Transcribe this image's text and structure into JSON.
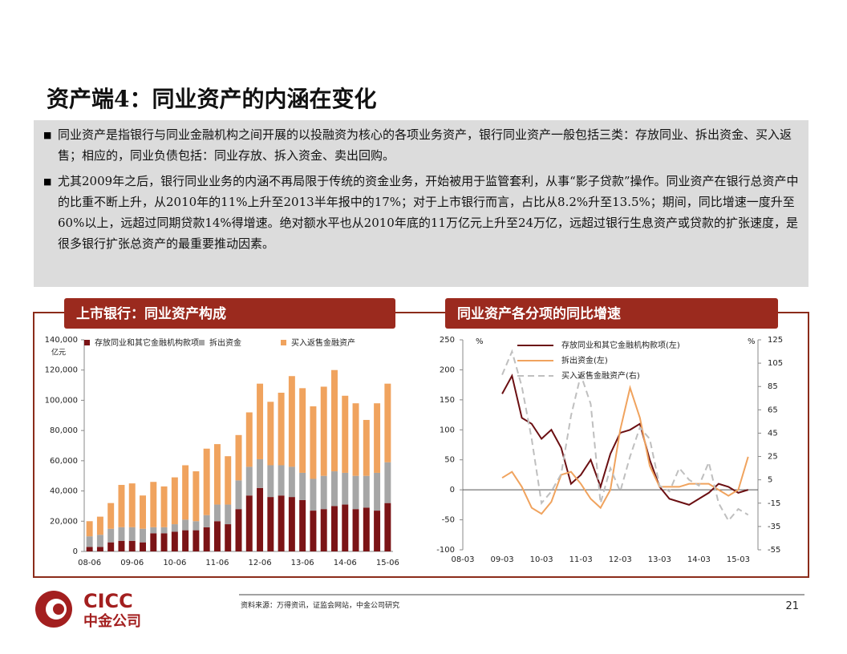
{
  "title": "资产端4：同业资产的内涵在变化",
  "bullets": [
    "同业资产是指银行与同业金融机构之间开展的以投融资为核心的各项业务资产，银行同业资产一般包括三类：存放同业、拆出资金、买入返售；相应的，同业负债包括：同业存放、拆入资金、卖出回购。",
    "尤其2009年之后，银行同业业务的内涵不再局限于传统的资金业务，开始被用于监管套利，从事“影子贷款”操作。同业资产在银行总资产中的比重不断上升，从2010年的11%上升至2013半年报中的17%；对于上市银行而言，占比从8.2%升至13.5%；期间，同比增速一度升至60%以上，远超过同期贷款14%得增速。绝对额水平也从2010年底的11万亿元上升至24万亿，远超过银行生息资产或贷款的扩张速度，是很多银行扩张总资产的最重要推动因素。"
  ],
  "source": "资料来源：万得资讯，证监会网站，中金公司研究",
  "page_number": "21",
  "logo": {
    "name": "CICC",
    "name_cn": "中金公司"
  },
  "chart_data": [
    {
      "type": "stacked_bar",
      "title": "上市银行：同业资产构成",
      "y_unit": "亿元",
      "categories": [
        "08-06",
        null,
        null,
        null,
        "09-06",
        null,
        null,
        null,
        "10-06",
        null,
        null,
        null,
        "11-06",
        null,
        null,
        null,
        "12-06",
        null,
        null,
        null,
        "13-06",
        null,
        null,
        null,
        "14-06",
        null,
        null,
        null,
        "15-06"
      ],
      "series": [
        {
          "name": "存放同业和其它金融机构款项",
          "color": "#7b1416",
          "values": [
            3000,
            3000,
            6000,
            7000,
            7000,
            6000,
            12000,
            12000,
            13000,
            14000,
            14000,
            16000,
            20000,
            18000,
            28000,
            37000,
            42000,
            36000,
            37000,
            36000,
            34000,
            27000,
            28000,
            30000,
            31000,
            28000,
            29000,
            27000,
            32000
          ]
        },
        {
          "name": "拆出资金",
          "color": "#a6a6a6",
          "values": [
            7000,
            8000,
            9000,
            9000,
            9000,
            9000,
            4000,
            4000,
            5000,
            7000,
            6000,
            8000,
            11000,
            13000,
            19000,
            19000,
            19000,
            21000,
            20000,
            20000,
            18000,
            21000,
            22000,
            23000,
            21000,
            22000,
            21000,
            25000,
            27000
          ]
        },
        {
          "name": "买入返售金融资产",
          "color": "#f0a35e",
          "values": [
            10000,
            12000,
            17000,
            28000,
            29000,
            22000,
            30000,
            27000,
            31000,
            36000,
            33000,
            44000,
            40000,
            32000,
            30000,
            36000,
            50000,
            42000,
            48000,
            60000,
            56000,
            48000,
            59000,
            67000,
            51000,
            48000,
            37000,
            46000,
            52000
          ]
        }
      ],
      "ylim": [
        0,
        140000
      ],
      "yticks": [
        0,
        {
          "value": 20000,
          "label": "20,000"
        },
        {
          "value": 40000,
          "label": "40,000"
        },
        {
          "value": 60000,
          "label": "60,000"
        },
        {
          "value": 80000,
          "label": "80,000"
        },
        {
          "value": 100000,
          "label": "100,000"
        },
        {
          "value": 120000,
          "label": "120,000"
        },
        {
          "value": 140000,
          "label": "140,000"
        }
      ]
    },
    {
      "type": "line",
      "title": "同业资产各分项的同比增速",
      "y_unit": "%",
      "y2_unit": "%",
      "categories": [
        "08-03",
        null,
        null,
        null,
        "09-03",
        null,
        null,
        null,
        "10-03",
        null,
        null,
        null,
        "11-03",
        null,
        null,
        null,
        "12-03",
        null,
        null,
        null,
        "13-03",
        null,
        null,
        null,
        "14-03",
        null,
        null,
        null,
        "15-03",
        null
      ],
      "series": [
        {
          "name": "存放同业和其它金融机构款项(左)",
          "color": "#6b0f12",
          "style": "solid",
          "values": [
            null,
            null,
            null,
            null,
            160,
            190,
            120,
            110,
            85,
            100,
            70,
            10,
            25,
            50,
            5,
            60,
            95,
            100,
            110,
            50,
            5,
            -15,
            -20,
            -25,
            -15,
            -5,
            10,
            5,
            -5,
            0
          ]
        },
        {
          "name": "拆出资金(左)",
          "color": "#f0a35e",
          "style": "solid",
          "values": [
            null,
            null,
            null,
            null,
            20,
            30,
            5,
            -30,
            -40,
            -20,
            25,
            30,
            10,
            -15,
            -30,
            0,
            100,
            170,
            120,
            40,
            5,
            5,
            5,
            10,
            10,
            10,
            0,
            -10,
            0,
            55
          ]
        },
        {
          "name": "买入返售金融资产(右)",
          "color": "#bfbfbf",
          "style": "dashed",
          "axis": "y2",
          "values": [
            null,
            null,
            null,
            null,
            95,
            115,
            85,
            40,
            -15,
            -5,
            10,
            60,
            95,
            70,
            -15,
            15,
            -5,
            25,
            50,
            40,
            0,
            -5,
            15,
            5,
            0,
            20,
            -15,
            -30,
            -20,
            -25
          ]
        }
      ],
      "ylim": [
        -100,
        250
      ],
      "yticks": [
        -100,
        -50,
        0,
        50,
        100,
        150,
        200,
        250
      ],
      "y2lim": [
        -55,
        125
      ],
      "y2ticks": [
        -55,
        -35,
        -15,
        5,
        25,
        45,
        65,
        85,
        105,
        125
      ]
    }
  ]
}
